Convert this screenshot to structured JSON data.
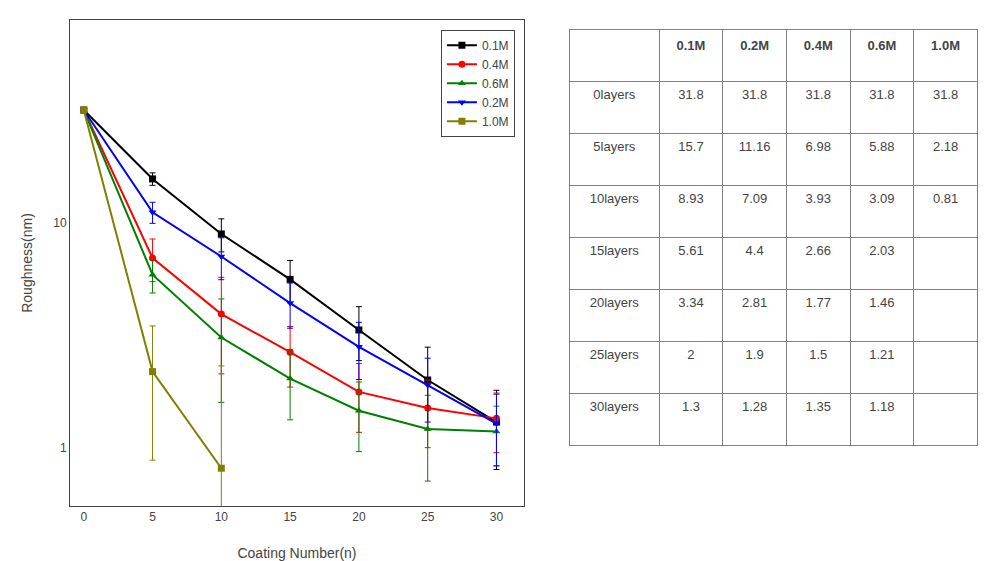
{
  "chart_data": [
    {
      "type": "line",
      "x": [
        0,
        5,
        10,
        15,
        20,
        25,
        30
      ],
      "xlabel": "Coating Number(n)",
      "ylabel": "Roughness(nm)",
      "log": "y",
      "xlim": [
        -1,
        32
      ],
      "xticks": [
        0,
        5,
        10,
        15,
        20,
        25,
        30
      ],
      "ylim": [
        0.55,
        80
      ],
      "yticks": [
        1,
        10
      ],
      "grid": false,
      "legend": "upper right",
      "series": [
        {
          "name": "0.1M",
          "color": "black",
          "marker": "square",
          "values": [
            31.8,
            15.7,
            8.93,
            5.61,
            3.34,
            2.0,
            1.3
          ],
          "errors": [
            0.5,
            1.0,
            1.5,
            1.2,
            0.9,
            0.8,
            0.5
          ]
        },
        {
          "name": "0.4M",
          "color": "red",
          "marker": "circle",
          "values": [
            31.8,
            6.98,
            3.93,
            2.66,
            1.77,
            1.5,
            1.35
          ],
          "errors": [
            0.5,
            1.5,
            1.8,
            0.8,
            0.6,
            0.5,
            0.4
          ]
        },
        {
          "name": "0.6M",
          "color": "green",
          "marker": "triangle-up",
          "values": [
            31.8,
            5.88,
            3.09,
            2.03,
            1.46,
            1.21,
            1.18
          ],
          "errors": [
            0.5,
            1.0,
            1.5,
            0.7,
            0.5,
            0.5,
            0.35
          ]
        },
        {
          "name": "0.2M",
          "color": "blue",
          "marker": "triangle-down",
          "values": [
            31.8,
            11.16,
            7.09,
            4.4,
            2.81,
            1.9,
            1.28
          ],
          "errors": [
            0.5,
            1.2,
            1.5,
            1.0,
            0.8,
            0.6,
            0.45
          ]
        },
        {
          "name": "1.0M",
          "color": "#808000",
          "marker": "square",
          "values": [
            31.8,
            2.18,
            0.81,
            null,
            null,
            null,
            null
          ],
          "errors": [
            0.5,
            1.3,
            1.5,
            null,
            null,
            null,
            null
          ]
        }
      ]
    },
    {
      "type": "table",
      "columns": [
        null,
        "0.1M",
        "0.2M",
        "0.4M",
        "0.6M",
        "1.0M"
      ],
      "rows": [
        [
          "0layers",
          "31.8",
          "31.8",
          "31.8",
          "31.8",
          "31.8"
        ],
        [
          "5layers",
          "15.7",
          "11.16",
          "6.98",
          "5.88",
          "2.18"
        ],
        [
          "10layers",
          "8.93",
          "7.09",
          "3.93",
          "3.09",
          "0.81"
        ],
        [
          "15layers",
          "5.61",
          "4.4",
          "2.66",
          "2.03",
          null
        ],
        [
          "20layers",
          "3.34",
          "2.81",
          "1.77",
          "1.46",
          null
        ],
        [
          "25layers",
          "2",
          "1.9",
          "1.5",
          "1.21",
          null
        ],
        [
          "30layers",
          "1.3",
          "1.28",
          "1.35",
          "1.18",
          null
        ]
      ]
    }
  ]
}
